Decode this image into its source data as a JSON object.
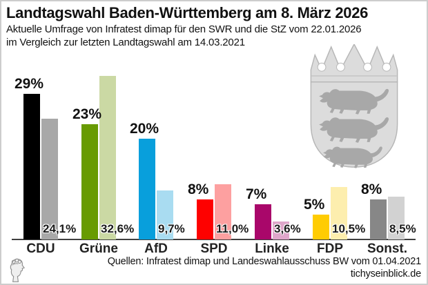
{
  "header": {
    "title": "Landtagswahl Baden-Württemberg am 8. März 2026",
    "subtitle_line1": "Aktuelle Umfrage von Infratest dimap für den SWR und die StZ vom 22.01.2026",
    "subtitle_line2": "im Vergleich zur letzten Landtagswahl am 14.03.2021"
  },
  "chart_data": {
    "type": "bar",
    "title": "Landtagswahl Baden-Württemberg am 8. März 2026",
    "categories": [
      "CDU",
      "Grüne",
      "AfD",
      "SPD",
      "Linke",
      "FDP",
      "Sonst."
    ],
    "series": [
      {
        "name": "Umfrage Infratest dimap 22.01.2026",
        "values": [
          29,
          23,
          20,
          8,
          7,
          5,
          8
        ],
        "labels": [
          "29%",
          "23%",
          "20%",
          "8%",
          "7%",
          "5%",
          "8%"
        ],
        "colors": [
          "#000000",
          "#689b02",
          "#089fdc",
          "#fe0100",
          "#a9076a",
          "#ffcc02",
          "#878787"
        ]
      },
      {
        "name": "Landtagswahl 14.03.2021",
        "values": [
          24.1,
          32.6,
          9.7,
          11.0,
          3.6,
          10.5,
          8.5
        ],
        "labels": [
          "24,1%",
          "32,6%",
          "9,7%",
          "11,0%",
          "3,6%",
          "10,5%",
          "8,5%"
        ],
        "colors": [
          "#a8a8a8",
          "#cbd9a4",
          "#a9dcf1",
          "#fda0a0",
          "#dfa6ca",
          "#fdeeae",
          "#d2d2d2"
        ]
      }
    ],
    "ylim": [
      0,
      34
    ],
    "grid": false,
    "legend": "none",
    "xlabel": "",
    "ylabel": ""
  },
  "footer": {
    "source_line": "Quellen: Infratest dimap und Landeswahlausschuss BW vom 01.04.2021",
    "website": "tichyseinblick.de"
  },
  "icons": {
    "coat_of_arms": "baden-wuerttemberg-coat-of-arms",
    "logo": "tichys-einblick-head-logo"
  },
  "colors": {
    "axis": "#3f3f3f",
    "text": "#111111",
    "border": "#cdcdcd",
    "arms_fill": "#dcdcdc",
    "arms_lion": "#a8a8a8"
  }
}
